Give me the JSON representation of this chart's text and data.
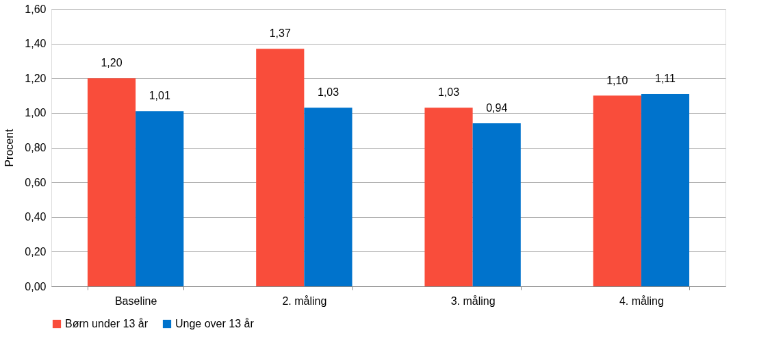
{
  "chart_data": {
    "type": "bar",
    "ylabel": "Procent",
    "categories": [
      "Baseline",
      "2. måling",
      "3. måling",
      "4. måling"
    ],
    "series": [
      {
        "name": "Børn under 13 år",
        "color": "#f94d3b",
        "values": [
          1.2,
          1.37,
          1.03,
          1.1
        ],
        "value_labels": [
          "1,20",
          "1,37",
          "1,03",
          "1,10"
        ]
      },
      {
        "name": "Unge over 13 år",
        "color": "#0073cc",
        "values": [
          1.01,
          1.03,
          0.94,
          1.11
        ],
        "value_labels": [
          "1,01",
          "1,03",
          "0,94",
          "1,11"
        ]
      }
    ],
    "ylim": [
      0,
      1.6
    ],
    "yticks": [
      {
        "value": 0,
        "label": "0,00"
      },
      {
        "value": 0.2,
        "label": "0,20"
      },
      {
        "value": 0.4,
        "label": "0,40"
      },
      {
        "value": 0.6,
        "label": "0,60"
      },
      {
        "value": 0.8,
        "label": "0,80"
      },
      {
        "value": 1.0,
        "label": "1,00"
      },
      {
        "value": 1.2,
        "label": "1,20"
      },
      {
        "value": 1.4,
        "label": "1,40"
      },
      {
        "value": 1.6,
        "label": "1,60"
      }
    ],
    "grid": "y",
    "legend": "bottom"
  }
}
